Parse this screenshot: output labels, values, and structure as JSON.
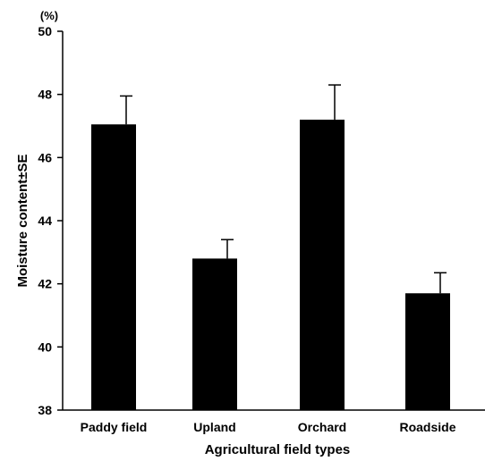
{
  "chart_data": {
    "type": "bar",
    "title": "",
    "xlabel": "Agricultural field types",
    "ylabel": "Moisture content±SE",
    "y_unit": "(%)",
    "ylim": [
      38,
      50
    ],
    "yticks": [
      38,
      40,
      42,
      44,
      46,
      48,
      50
    ],
    "grid": false,
    "categories": [
      "Paddy field",
      "Upland",
      "Orchard",
      "Roadside"
    ],
    "values": [
      47.05,
      42.8,
      47.2,
      41.7
    ],
    "errors": [
      0.9,
      0.6,
      1.1,
      0.65
    ],
    "bar_color": "#000000"
  }
}
